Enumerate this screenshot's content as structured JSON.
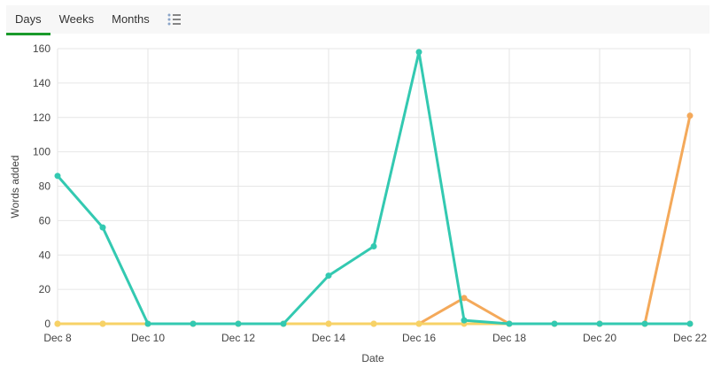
{
  "tabs": [
    {
      "label": "Days",
      "active": true
    },
    {
      "label": "Weeks",
      "active": false
    },
    {
      "label": "Months",
      "active": false
    }
  ],
  "list_icon": "list-icon",
  "colors": {
    "accent": "#1a9a2b",
    "grid": "#e6e6e6"
  },
  "chart_data": {
    "type": "line",
    "xlabel": "Date",
    "ylabel": "Words added",
    "x": [
      "Dec 8",
      "Dec 9",
      "Dec 10",
      "Dec 11",
      "Dec 12",
      "Dec 13",
      "Dec 14",
      "Dec 15",
      "Dec 16",
      "Dec 17",
      "Dec 18",
      "Dec 19",
      "Dec 20",
      "Dec 21",
      "Dec 22"
    ],
    "x_tick_labels": [
      "Dec 8",
      "Dec 10",
      "Dec 12",
      "Dec 14",
      "Dec 16",
      "Dec 18",
      "Dec 20",
      "Dec 22"
    ],
    "y_ticks": [
      0,
      20,
      40,
      60,
      80,
      100,
      120,
      140,
      160
    ],
    "ylim": [
      0,
      160
    ],
    "grid": true,
    "legend": "none",
    "series": [
      {
        "color": "#f4a95a",
        "values": [
          0,
          0,
          0,
          0,
          0,
          0,
          0,
          0,
          0,
          15,
          0,
          0,
          0,
          0,
          121
        ]
      },
      {
        "color": "#f7d266",
        "values": [
          0,
          0,
          0,
          0,
          0,
          0,
          0,
          0,
          0,
          0,
          0,
          0,
          0,
          0,
          0
        ]
      },
      {
        "color": "#33c9b1",
        "values": [
          86,
          56,
          0,
          0,
          0,
          0,
          28,
          45,
          158,
          2,
          0,
          0,
          0,
          0,
          0
        ]
      }
    ]
  }
}
